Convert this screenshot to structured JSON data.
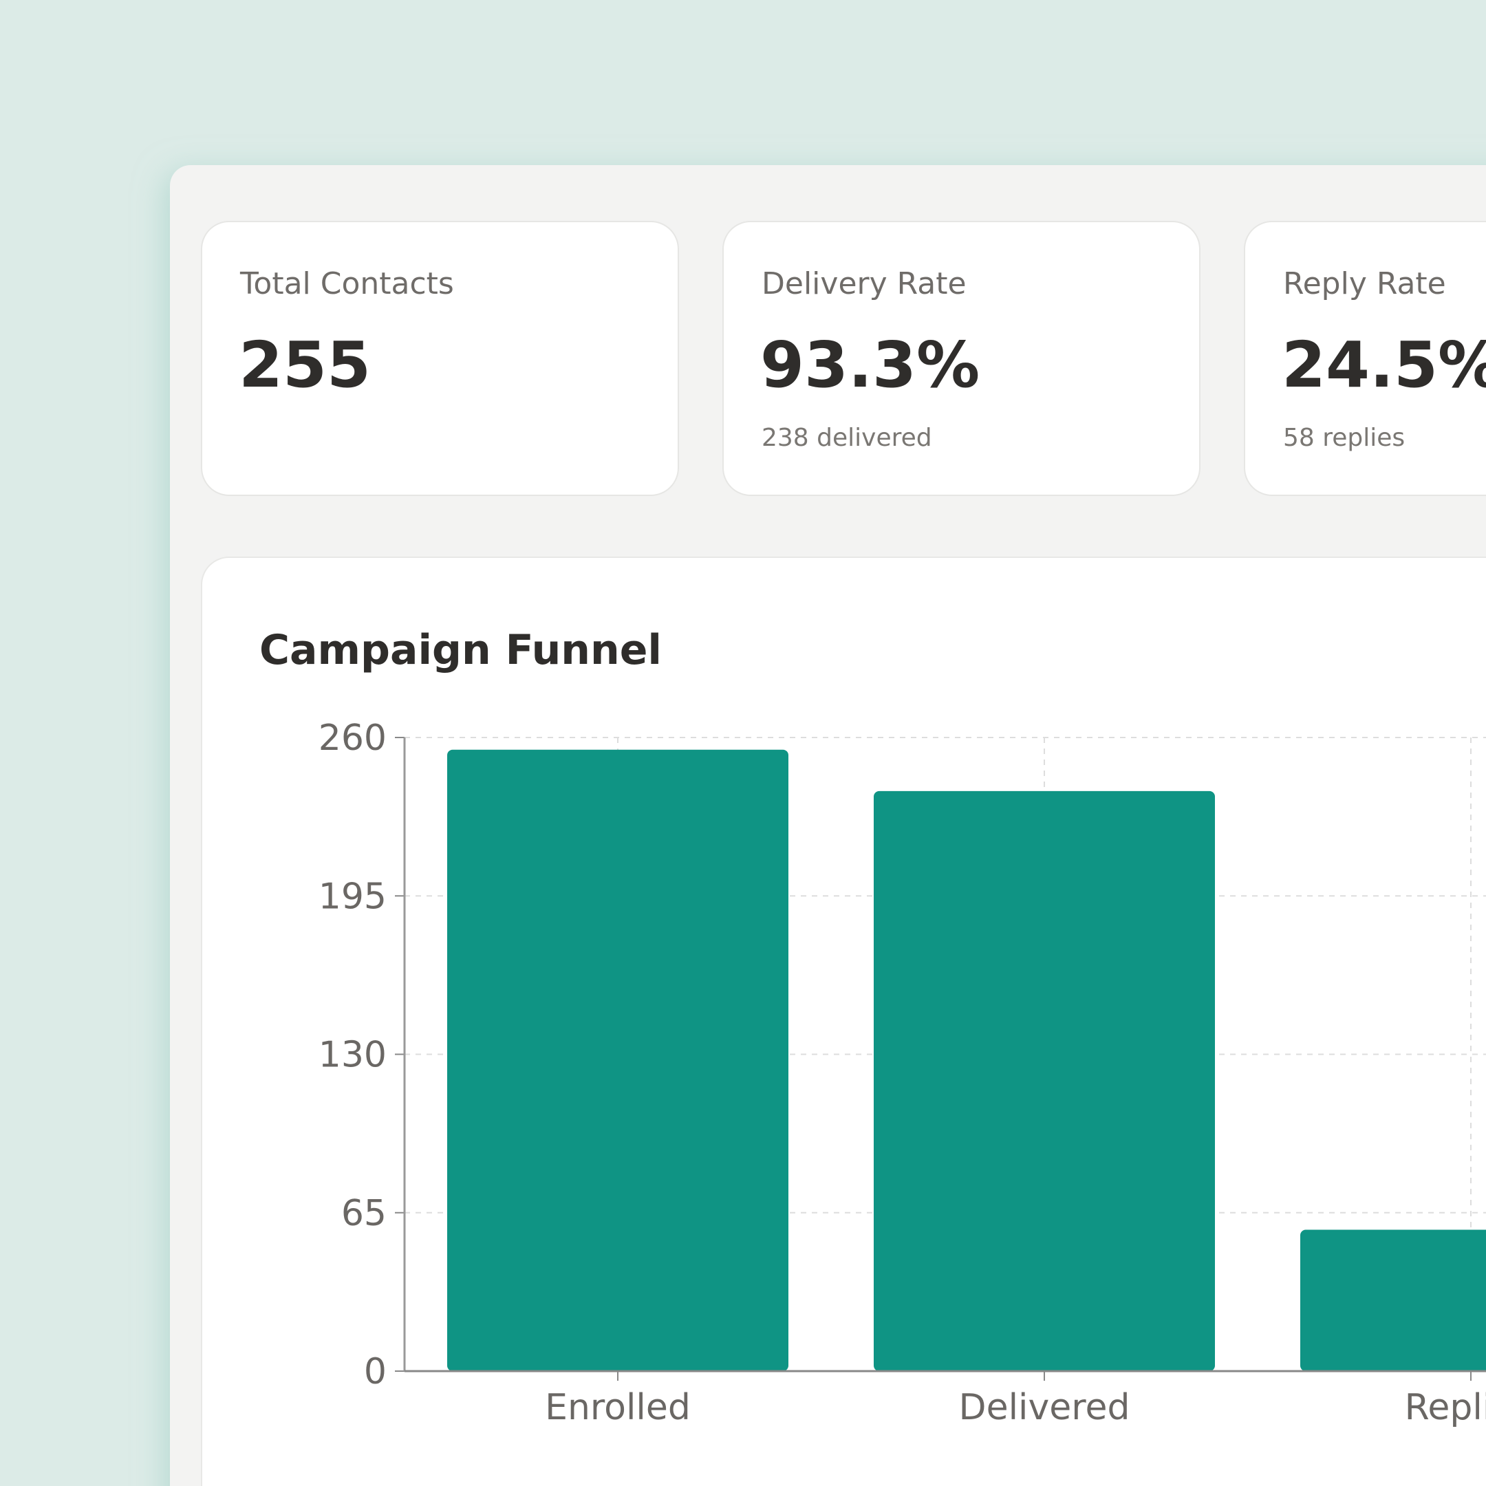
{
  "cards": [
    {
      "label": "Total Contacts",
      "value": "255"
    },
    {
      "label": "Delivery Rate",
      "value": "93.3%",
      "note": "238 delivered"
    },
    {
      "label": "Reply Rate",
      "value": "24.5%",
      "note": "58 replies"
    }
  ],
  "chart_data": {
    "type": "bar",
    "title": "Campaign Funnel",
    "categories": [
      "Enrolled",
      "Delivered",
      "Replied"
    ],
    "values": [
      255,
      238,
      58
    ],
    "color": "#0f9484",
    "ylim": [
      0,
      260
    ],
    "yticks": [
      0,
      65,
      130,
      195,
      260
    ],
    "grid": true
  }
}
